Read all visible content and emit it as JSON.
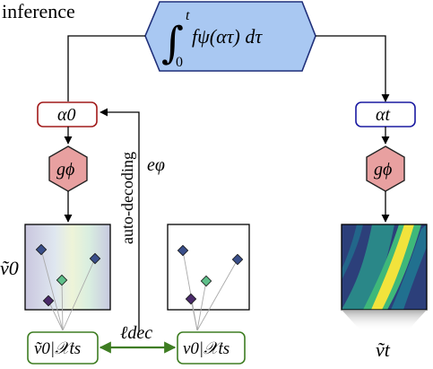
{
  "labels": {
    "inference": "inference",
    "integral_integrand": "fψ(ατ) dτ",
    "integral_upper": "t",
    "integral_lower": "0",
    "integral_sign": "∫",
    "alpha_0": "α0",
    "alpha_t": "αt",
    "g_phi_left": "gϕ",
    "g_phi_right": "gϕ",
    "auto_decoding": "auto-decoding",
    "e_varphi": "eφ",
    "v0_tilde": "ṽ0",
    "v_t_tilde": "ṽt",
    "v0_tilde_restricted": "ṽ0|𝒳ts",
    "v0_restricted": "v0|𝒳ts",
    "loss": "ℓdec"
  },
  "colors": {
    "integral_fill": "#a9c8f2",
    "integral_stroke": "#1f2f7a",
    "alpha0_stroke": "#a11a1a",
    "alphat_stroke": "#1a1aa1",
    "g_fill": "#e8a0a0",
    "g_stroke": "#222222",
    "green": "#3e7d22",
    "marker_blue": "#3a4f8a",
    "marker_green": "#5fbf8a",
    "marker_purple": "#4a2a6a"
  }
}
